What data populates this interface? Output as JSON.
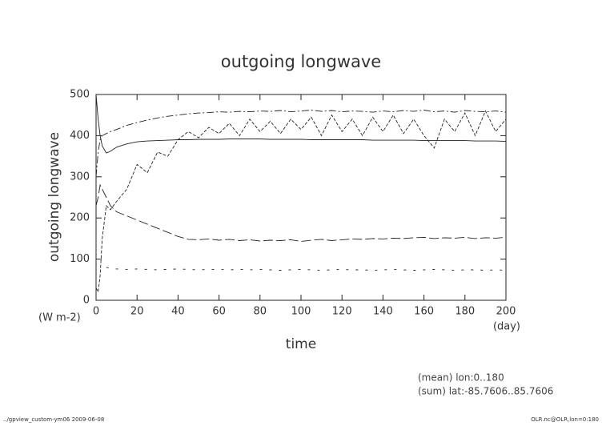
{
  "chart_data": {
    "type": "line",
    "title": "outgoing longwave",
    "y_label": "outgoing longwave",
    "y_unit": "(W m-2)",
    "x_label": "time",
    "x_unit": "(day)",
    "notes": [
      "(mean) lon:0..180",
      "(sum) lat:-85.7606..85.7606"
    ],
    "footer_left": "../gpview_custom-ym06  2009-06-08",
    "footer_right": "OLR.nc@OLR,lon=0:180",
    "x": [
      0,
      1,
      2,
      3,
      5,
      7,
      10,
      15,
      20,
      25,
      30,
      35,
      40,
      45,
      50,
      55,
      60,
      65,
      70,
      75,
      80,
      85,
      90,
      95,
      100,
      105,
      110,
      115,
      120,
      125,
      130,
      135,
      140,
      145,
      150,
      155,
      160,
      165,
      170,
      175,
      180,
      185,
      190,
      195,
      200
    ],
    "series": [
      {
        "color": "#222222",
        "dash": "solid",
        "values": [
          500,
          440,
          400,
          375,
          358,
          362,
          372,
          380,
          385,
          387,
          388,
          389,
          390,
          390,
          391,
          391,
          391,
          392,
          392,
          392,
          392,
          391,
          391,
          391,
          391,
          390,
          390,
          390,
          390,
          390,
          390,
          389,
          389,
          389,
          389,
          389,
          388,
          388,
          388,
          388,
          388,
          387,
          387,
          387,
          386
        ]
      },
      {
        "color": "#222222",
        "dash": "dashdot",
        "values": [
          300,
          360,
          390,
          400,
          405,
          410,
          415,
          425,
          432,
          438,
          443,
          447,
          450,
          453,
          455,
          456,
          458,
          457,
          459,
          458,
          460,
          459,
          461,
          458,
          460,
          462,
          459,
          461,
          458,
          460,
          459,
          457,
          460,
          458,
          461,
          459,
          462,
          458,
          460,
          457,
          461,
          459,
          458,
          460,
          457
        ]
      },
      {
        "color": "#222222",
        "dash": "dash",
        "values": [
          30,
          20,
          60,
          150,
          230,
          220,
          240,
          270,
          330,
          310,
          360,
          350,
          390,
          410,
          395,
          420,
          405,
          430,
          400,
          440,
          410,
          435,
          405,
          440,
          415,
          445,
          400,
          450,
          410,
          440,
          400,
          445,
          410,
          450,
          405,
          440,
          400,
          370,
          440,
          410,
          455,
          400,
          460,
          410,
          440
        ]
      },
      {
        "color": "#222222",
        "dash": "longdash",
        "values": [
          230,
          250,
          280,
          270,
          250,
          230,
          215,
          205,
          195,
          185,
          175,
          165,
          155,
          148,
          147,
          149,
          146,
          148,
          145,
          147,
          144,
          146,
          145,
          147,
          143,
          146,
          148,
          145,
          147,
          149,
          148,
          150,
          149,
          151,
          150,
          152,
          153,
          150,
          152,
          151,
          153,
          150,
          152,
          151,
          153
        ]
      },
      {
        "color": "#222222",
        "dash": "dot",
        "values": [
          null,
          null,
          null,
          null,
          80,
          78,
          76,
          75,
          76,
          75,
          74,
          75,
          76,
          75,
          74,
          75,
          75,
          74,
          75,
          74,
          75,
          74,
          73,
          74,
          75,
          74,
          73,
          74,
          75,
          74,
          74,
          73,
          74,
          75,
          74,
          73,
          74,
          75,
          74,
          73,
          74,
          74,
          73,
          74,
          73
        ]
      }
    ],
    "xlim": [
      0,
      200
    ],
    "xticks": [
      0,
      20,
      40,
      60,
      80,
      100,
      120,
      140,
      160,
      180,
      200
    ],
    "ylim": [
      0,
      500
    ],
    "yticks": [
      0,
      100,
      200,
      300,
      400,
      500
    ]
  }
}
